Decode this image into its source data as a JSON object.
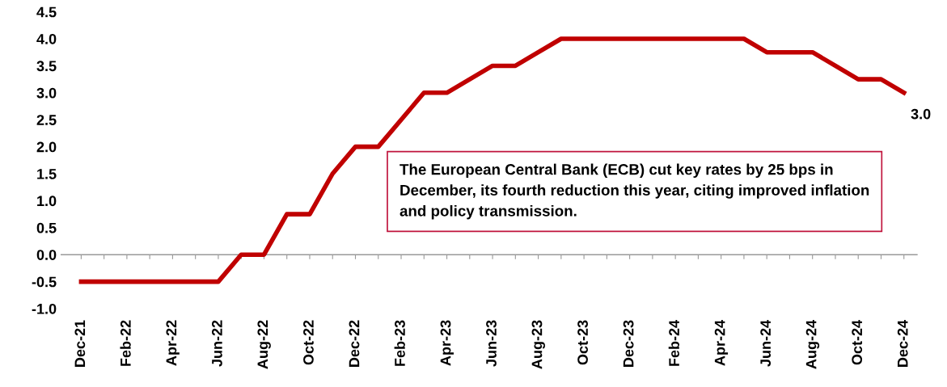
{
  "chart_data": {
    "type": "line",
    "categories": [
      "Dec-21",
      null,
      "Feb-22",
      null,
      "Apr-22",
      null,
      "Jun-22",
      null,
      "Aug-22",
      null,
      "Oct-22",
      null,
      "Dec-22",
      null,
      "Feb-23",
      null,
      "Apr-23",
      null,
      "Jun-23",
      null,
      "Aug-23",
      null,
      "Oct-23",
      null,
      "Dec-23",
      null,
      "Feb-24",
      null,
      "Apr-24",
      null,
      "Jun-24",
      null,
      "Aug-24",
      null,
      "Oct-24",
      null,
      "Dec-24"
    ],
    "series": [
      {
        "color": "#c00000",
        "values": [
          -0.5,
          -0.5,
          -0.5,
          -0.5,
          -0.5,
          -0.5,
          -0.5,
          0.0,
          0.0,
          0.75,
          0.75,
          1.5,
          2.0,
          2.0,
          2.5,
          3.0,
          3.0,
          3.25,
          3.5,
          3.5,
          3.75,
          4.0,
          4.0,
          4.0,
          4.0,
          4.0,
          4.0,
          4.0,
          4.0,
          4.0,
          3.75,
          3.75,
          3.75,
          3.5,
          3.25,
          3.25,
          3.0
        ],
        "value_labels": [
          null,
          null,
          null,
          null,
          null,
          null,
          null,
          null,
          null,
          null,
          null,
          null,
          null,
          null,
          null,
          null,
          null,
          null,
          null,
          null,
          null,
          null,
          null,
          null,
          null,
          null,
          null,
          null,
          null,
          null,
          null,
          null,
          null,
          null,
          null,
          null,
          "3.0"
        ]
      }
    ],
    "ylim": [
      -1.0,
      4.5
    ],
    "yticks": [
      {
        "value": -1.0,
        "label": "-1.0"
      },
      {
        "value": -0.5,
        "label": "-0.5"
      },
      {
        "value": 0.0,
        "label": "0.0"
      },
      {
        "value": 0.5,
        "label": "0.5"
      },
      {
        "value": 1.0,
        "label": "1.0"
      },
      {
        "value": 1.5,
        "label": "1.5"
      },
      {
        "value": 2.0,
        "label": "2.0"
      },
      {
        "value": 2.5,
        "label": "2.5"
      },
      {
        "value": 3.0,
        "label": "3.0"
      },
      {
        "value": 3.5,
        "label": "3.5"
      },
      {
        "value": 4.0,
        "label": "4.0"
      },
      {
        "value": 4.5,
        "label": "4.5"
      }
    ],
    "annotations": [
      "The European Central Bank (ECB) cut key rates by 25 bps in December, its fourth reduction this year, citing improved inflation and policy transmission."
    ],
    "ref_lines": [
      {
        "axis": "y",
        "value": 0.0,
        "color": "#999999"
      }
    ],
    "grid": false,
    "legend": false,
    "marker": "none",
    "line_style": "solid"
  }
}
